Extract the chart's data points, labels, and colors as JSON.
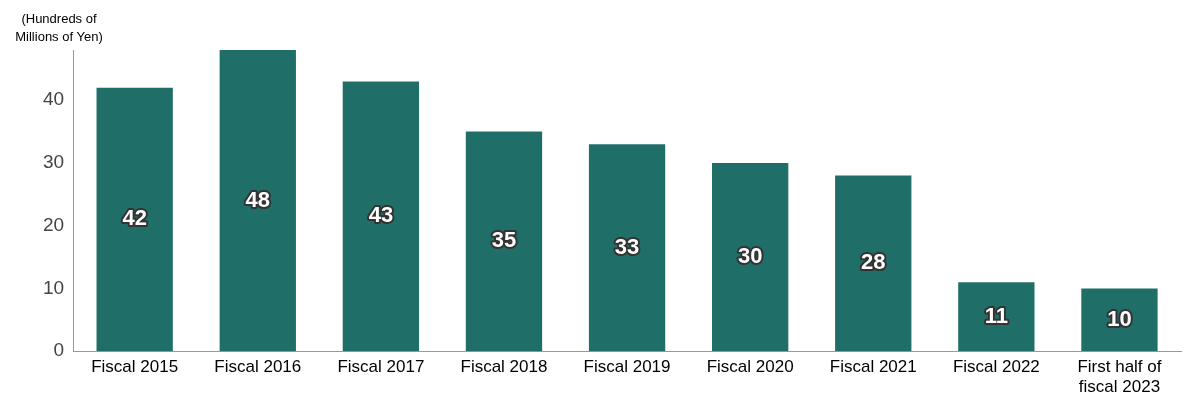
{
  "chart_data": {
    "type": "bar",
    "ylabel": "(Hundreds of Millions of Yen)",
    "categories": [
      "Fiscal 2015",
      "Fiscal 2016",
      "Fiscal 2017",
      "Fiscal 2018",
      "Fiscal 2019",
      "Fiscal 2020",
      "Fiscal 2021",
      "Fiscal 2022",
      "First half of fiscal 2023"
    ],
    "values": [
      42,
      48,
      43,
      35,
      33,
      30,
      28,
      11,
      10
    ],
    "color": "#1f6e68",
    "ylim": [
      0,
      48
    ],
    "yticks": [
      0,
      10,
      20,
      30,
      40
    ],
    "grid": false,
    "legend": false,
    "data_labels": true
  }
}
